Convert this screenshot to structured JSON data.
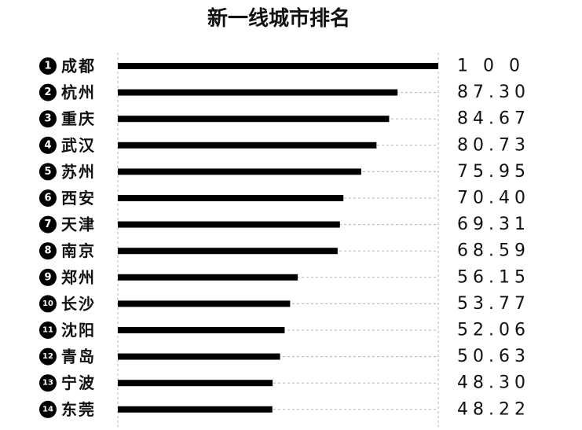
{
  "chart_data": {
    "type": "bar",
    "orientation": "horizontal",
    "title": "新一线城市排名",
    "xlabel": "",
    "ylabel": "",
    "xlim": [
      0,
      100
    ],
    "grid": true,
    "bar_color": "#000000",
    "grid_color": "#b5b5b5",
    "categories": [
      "成都",
      "杭州",
      "重庆",
      "武汉",
      "苏州",
      "西安",
      "天津",
      "南京",
      "郑州",
      "长沙",
      "沈阳",
      "青岛",
      "宁波",
      "东莞"
    ],
    "ranks": [
      "1",
      "2",
      "3",
      "4",
      "5",
      "6",
      "7",
      "8",
      "9",
      "10",
      "11",
      "12",
      "13",
      "14"
    ],
    "values": [
      100,
      87.3,
      84.67,
      80.73,
      75.95,
      70.4,
      69.31,
      68.59,
      56.15,
      53.77,
      52.06,
      50.63,
      48.3,
      48.22
    ],
    "value_labels": [
      "1 0 0",
      "87.30",
      "84.67",
      "80.73",
      "75.95",
      "70.40",
      "69.31",
      "68.59",
      "56.15",
      "53.77",
      "52.06",
      "50.63",
      "48.30",
      "48.22"
    ]
  }
}
